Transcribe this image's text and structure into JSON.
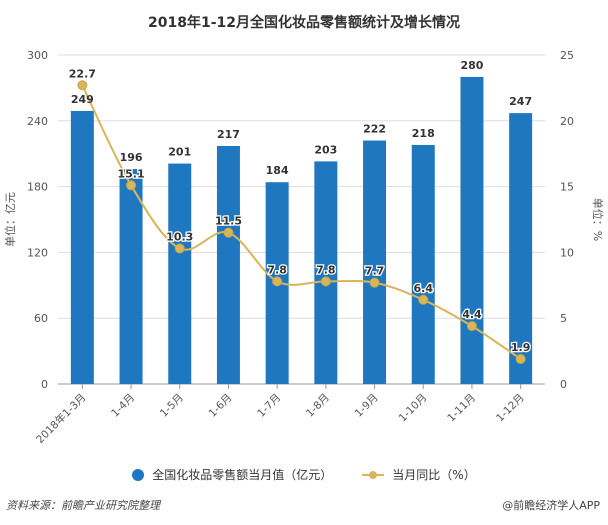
{
  "chart_data": {
    "type": "bar+line",
    "title": "2018年1-12月全国化妆品零售额统计及增长情况",
    "categories": [
      "2018年1-3月",
      "1-4月",
      "1-5月",
      "1-6月",
      "1-7月",
      "1-8月",
      "1-9月",
      "1-10月",
      "1-11月",
      "1-12月"
    ],
    "series": [
      {
        "name": "全国化妆品零售额当月值（亿元）",
        "type": "bar",
        "axis": "left",
        "color": "#1f77c0",
        "values": [
          249,
          196,
          201,
          217,
          184,
          203,
          222,
          218,
          280,
          247
        ]
      },
      {
        "name": "当月同比（%）",
        "type": "line",
        "axis": "right",
        "color": "#d9b55a",
        "values": [
          22.7,
          15.1,
          10.3,
          11.5,
          7.8,
          7.8,
          7.7,
          6.4,
          4.4,
          1.9
        ]
      }
    ],
    "ylabel": "单位：亿元",
    "y2label": "单位：%",
    "ylim": [
      0,
      300
    ],
    "y2lim": [
      0,
      25
    ],
    "yticks": [
      "0",
      "60",
      "120",
      "180",
      "240",
      "300"
    ],
    "y2ticks": [
      "0",
      "5",
      "10",
      "15",
      "20",
      "25"
    ],
    "grid": true,
    "legend": "bottom-center"
  },
  "legend": {
    "bar": "全国化妆品零售额当月值（亿元）",
    "line": "当月同比（%）"
  },
  "footer": {
    "source": "资料来源：前瞻产业研究院整理",
    "credit": "@前瞻经济学人APP"
  }
}
